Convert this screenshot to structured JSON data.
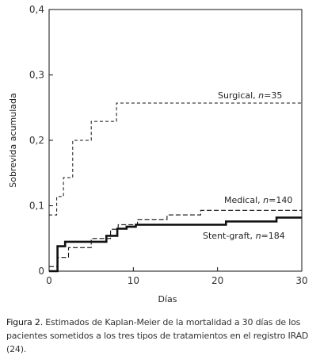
{
  "chart_data": {
    "type": "line",
    "xlabel": "Días",
    "ylabel": "Sobrevida acumulada",
    "xlim": [
      0,
      30
    ],
    "ylim": [
      0,
      0.4
    ],
    "x_ticks": [
      0,
      10,
      20,
      30
    ],
    "y_ticks": [
      {
        "value": 0,
        "label": "0"
      },
      {
        "value": 0.1,
        "label": "0,1"
      },
      {
        "value": 0.2,
        "label": "0,2"
      },
      {
        "value": 0.3,
        "label": "0,3"
      },
      {
        "value": 0.4,
        "label": "0,4"
      }
    ],
    "grid": false,
    "series": [
      {
        "name": "Surgical",
        "n_label": "n",
        "n_value": "=35",
        "style": "dashed-thin",
        "x": [
          0,
          0.9,
          0.9,
          1.7,
          1.7,
          2.8,
          2.8,
          5,
          5,
          8,
          8,
          30
        ],
        "y": [
          0.086,
          0.086,
          0.114,
          0.114,
          0.143,
          0.143,
          0.2,
          0.2,
          0.229,
          0.229,
          0.257,
          0.257
        ]
      },
      {
        "name": "Medical",
        "n_label": "n",
        "n_value": "=140",
        "style": "dashed",
        "x": [
          0,
          1,
          1,
          2.3,
          2.3,
          5,
          5,
          7.3,
          7.3,
          8.2,
          8.2,
          10.5,
          10.5,
          14,
          14,
          18,
          18,
          30
        ],
        "y": [
          0.007,
          0.007,
          0.021,
          0.021,
          0.036,
          0.036,
          0.05,
          0.05,
          0.064,
          0.064,
          0.071,
          0.071,
          0.079,
          0.079,
          0.086,
          0.086,
          0.093,
          0.093
        ]
      },
      {
        "name": "Stent-graft",
        "n_label": "n",
        "n_value": "=184",
        "style": "solid-thick",
        "x": [
          0,
          1,
          1,
          1.9,
          1.9,
          6.8,
          6.8,
          8.1,
          8.1,
          9.2,
          9.2,
          10.3,
          10.3,
          21,
          21,
          27,
          27,
          30
        ],
        "y": [
          0,
          0,
          0.038,
          0.038,
          0.045,
          0.045,
          0.054,
          0.054,
          0.065,
          0.065,
          0.068,
          0.068,
          0.071,
          0.071,
          0.076,
          0.076,
          0.082,
          0.082
        ]
      }
    ]
  },
  "caption": {
    "label": "Figura 2.",
    "text": "Estimados de Kaplan-Meier de la mortalidad a 30 días de los pacientes sometidos a los tres tipos de tratamientos en el registro IRAD (24)."
  },
  "colors": {
    "axis": "#111111",
    "line": "#111111"
  }
}
